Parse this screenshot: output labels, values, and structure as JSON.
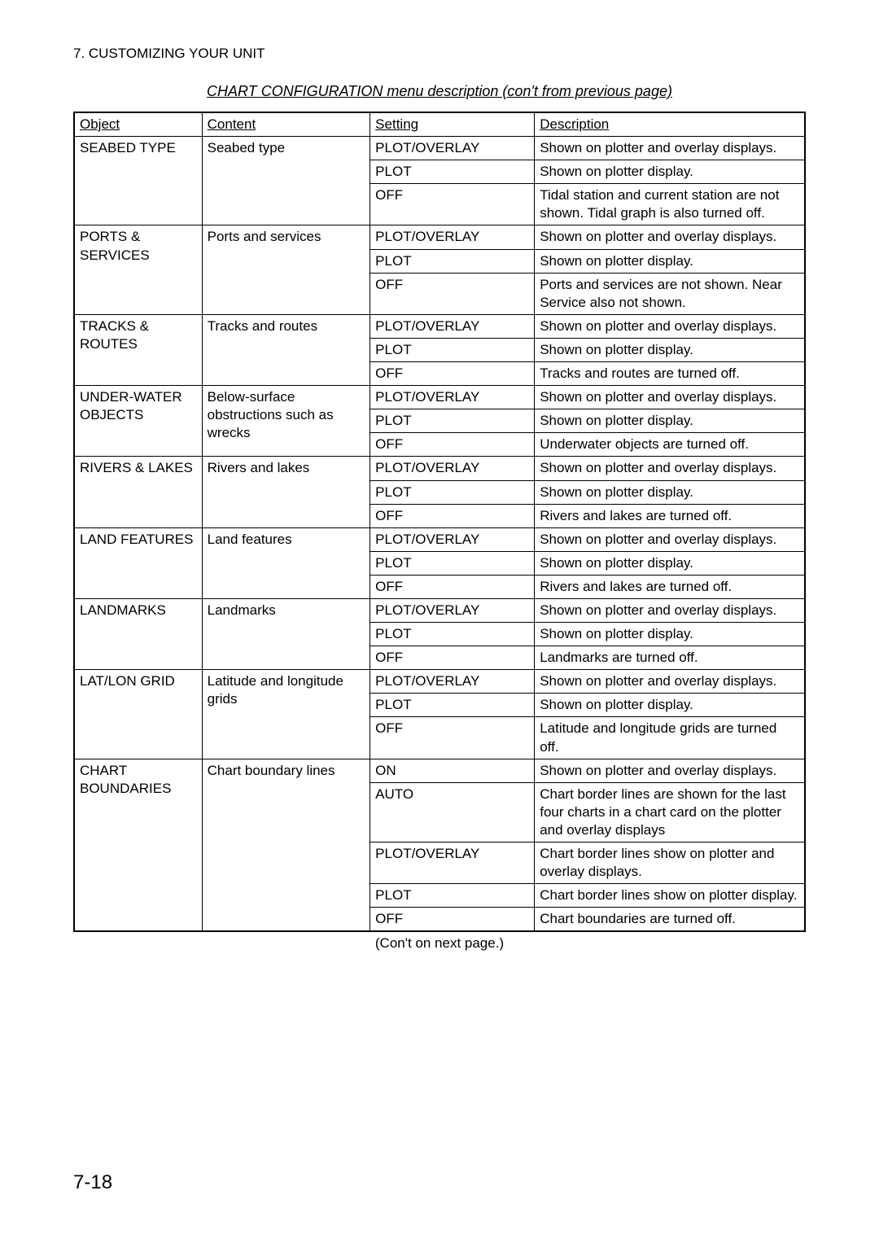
{
  "header": {
    "section": "7. CUSTOMIZING YOUR UNIT",
    "title": "CHART CONFIGURATION menu description (con't from previous page)"
  },
  "columns": [
    "Object",
    "Content",
    "Setting",
    "Description"
  ],
  "groups": [
    {
      "object": "SEABED TYPE",
      "content": "Seabed type",
      "rows": [
        {
          "setting": "PLOT/OVERLAY",
          "description": "Shown on plotter and overlay displays."
        },
        {
          "setting": "PLOT",
          "description": "Shown on plotter display."
        },
        {
          "setting": "OFF",
          "description": "Tidal station and current station are not shown. Tidal graph is also turned off."
        }
      ]
    },
    {
      "object": "PORTS & SERVICES",
      "content": "Ports and services",
      "rows": [
        {
          "setting": "PLOT/OVERLAY",
          "description": "Shown on plotter and overlay displays."
        },
        {
          "setting": "PLOT",
          "description": "Shown on plotter display."
        },
        {
          "setting": "OFF",
          "description": "Ports and services are not shown. Near Service also not shown."
        }
      ]
    },
    {
      "object": "TRACKS & ROUTES",
      "content": "Tracks and routes",
      "rows": [
        {
          "setting": "PLOT/OVERLAY",
          "description": "Shown on plotter and overlay displays."
        },
        {
          "setting": "PLOT",
          "description": "Shown on plotter display."
        },
        {
          "setting": "OFF",
          "description": "Tracks and routes are turned off."
        }
      ]
    },
    {
      "object": "UNDER-WATER OBJECTS",
      "content": "Below-surface obstructions such as wrecks",
      "rows": [
        {
          "setting": "PLOT/OVERLAY",
          "description": "Shown on plotter and overlay displays."
        },
        {
          "setting": "PLOT",
          "description": "Shown on plotter display."
        },
        {
          "setting": "OFF",
          "description": "Underwater objects are turned off."
        }
      ]
    },
    {
      "object": "RIVERS & LAKES",
      "content": "Rivers and lakes",
      "rows": [
        {
          "setting": "PLOT/OVERLAY",
          "description": "Shown on plotter and overlay displays."
        },
        {
          "setting": "PLOT",
          "description": "Shown on plotter display."
        },
        {
          "setting": "OFF",
          "description": "Rivers and lakes are turned off."
        }
      ]
    },
    {
      "object": "LAND FEATURES",
      "content": "Land features",
      "rows": [
        {
          "setting": "PLOT/OVERLAY",
          "description": "Shown on plotter and overlay displays."
        },
        {
          "setting": "PLOT",
          "description": "Shown on plotter display."
        },
        {
          "setting": "OFF",
          "description": "Rivers and lakes are turned off."
        }
      ]
    },
    {
      "object": "LANDMARKS",
      "content": "Landmarks",
      "rows": [
        {
          "setting": "PLOT/OVERLAY",
          "description": "Shown on plotter and overlay displays."
        },
        {
          "setting": "PLOT",
          "description": "Shown on plotter display."
        },
        {
          "setting": "OFF",
          "description": "Landmarks are turned off."
        }
      ]
    },
    {
      "object": "LAT/LON GRID",
      "content": "Latitude and longitude grids",
      "rows": [
        {
          "setting": "PLOT/OVERLAY",
          "description": "Shown on plotter and overlay displays."
        },
        {
          "setting": "PLOT",
          "description": "Shown on plotter display."
        },
        {
          "setting": "OFF",
          "description": "Latitude and longitude grids are turned off."
        }
      ]
    },
    {
      "object": "CHART BOUNDARIES",
      "content": "Chart boundary lines",
      "rows": [
        {
          "setting": "ON",
          "description": "Shown on plotter and overlay displays."
        },
        {
          "setting": "AUTO",
          "description": "Chart border lines are shown for the last four charts in a chart card on the plotter and overlay displays"
        },
        {
          "setting": "PLOT/OVERLAY",
          "description": "Chart border lines show on plotter and overlay displays."
        },
        {
          "setting": "PLOT",
          "description": "Chart border lines show on plotter display."
        },
        {
          "setting": "OFF",
          "description": "Chart boundaries are turned off."
        }
      ]
    }
  ],
  "footer_note": "(Con't on next page.)",
  "page_number": "7-18"
}
